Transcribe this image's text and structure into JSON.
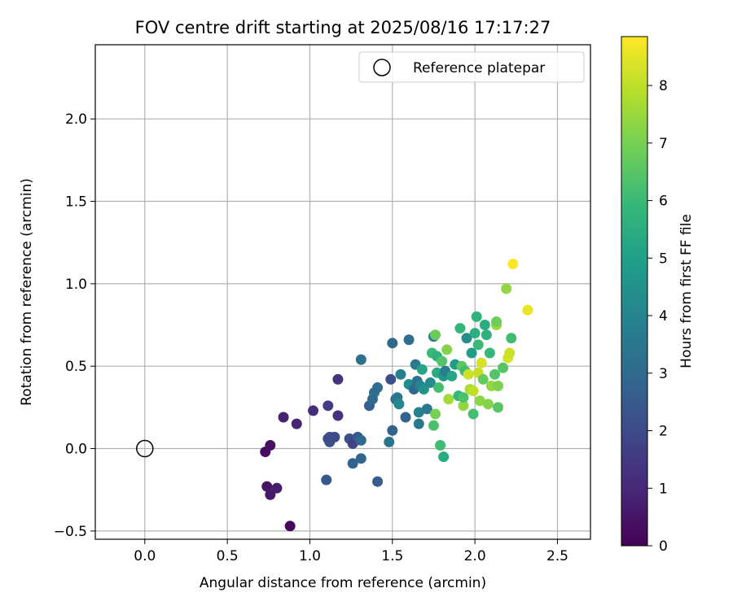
{
  "chart_data": {
    "type": "scatter",
    "title": "FOV centre drift starting at 2025/08/16 17:17:27",
    "xlabel": "Angular distance from reference (arcmin)",
    "ylabel": "Rotation from reference (arcmin)",
    "xlim": [
      -0.3,
      2.7
    ],
    "ylim": [
      -0.55,
      2.45
    ],
    "xticks": [
      0.0,
      0.5,
      1.0,
      1.5,
      2.0,
      2.5
    ],
    "xtick_labels": [
      "0.0",
      "0.5",
      "1.0",
      "1.5",
      "2.0",
      "2.5"
    ],
    "yticks": [
      -0.5,
      0.0,
      0.5,
      1.0,
      1.5,
      2.0
    ],
    "ytick_labels": [
      "−0.5",
      "0.0",
      "0.5",
      "1.0",
      "1.5",
      "2.0"
    ],
    "grid": true,
    "legend": {
      "placement": "top-right",
      "entries": [
        "Reference platepar"
      ]
    },
    "reference_point": {
      "label": "Reference platepar",
      "x": 0.0,
      "y": 0.0,
      "marker": "hollow-circle"
    },
    "colorbar": {
      "label": "Hours from first FF file",
      "colormap": "viridis",
      "range": [
        0,
        8.85
      ],
      "ticks": [
        0,
        1,
        2,
        3,
        4,
        5,
        6,
        7,
        8
      ],
      "tick_labels": [
        "0",
        "1",
        "2",
        "3",
        "4",
        "5",
        "6",
        "7",
        "8"
      ]
    },
    "series": [
      {
        "points": [
          [
            0.88,
            -0.47,
            0.2
          ],
          [
            0.73,
            -0.02,
            0.3
          ],
          [
            0.76,
            0.02,
            0.4
          ],
          [
            0.74,
            -0.23,
            0.5
          ],
          [
            0.76,
            -0.28,
            0.6
          ],
          [
            0.8,
            -0.24,
            0.7
          ],
          [
            0.84,
            0.19,
            0.8
          ],
          [
            0.92,
            0.15,
            0.9
          ],
          [
            1.02,
            0.23,
            1.1
          ],
          [
            1.11,
            0.26,
            1.6
          ],
          [
            1.17,
            0.42,
            1.3
          ],
          [
            1.17,
            0.2,
            1.2
          ],
          [
            1.11,
            0.06,
            2.0
          ],
          [
            1.12,
            0.04,
            2.2
          ],
          [
            1.12,
            0.07,
            2.1
          ],
          [
            1.15,
            0.07,
            2.0
          ],
          [
            1.1,
            -0.19,
            2.4
          ],
          [
            1.24,
            0.06,
            2.2
          ],
          [
            1.26,
            0.03,
            1.8
          ],
          [
            1.29,
            0.07,
            2.5
          ],
          [
            1.26,
            -0.09,
            2.8
          ],
          [
            1.31,
            0.05,
            3.0
          ],
          [
            1.31,
            -0.06,
            2.9
          ],
          [
            1.31,
            0.54,
            3.3
          ],
          [
            1.36,
            0.26,
            2.7
          ],
          [
            1.38,
            0.3,
            3.0
          ],
          [
            1.39,
            0.34,
            3.2
          ],
          [
            1.41,
            0.37,
            3.1
          ],
          [
            1.41,
            -0.2,
            2.6
          ],
          [
            1.49,
            0.42,
            2.2
          ],
          [
            1.48,
            0.04,
            3.4
          ],
          [
            1.5,
            0.11,
            2.8
          ],
          [
            1.5,
            0.64,
            3.0
          ],
          [
            1.52,
            0.3,
            2.9
          ],
          [
            1.53,
            0.31,
            3.5
          ],
          [
            1.54,
            0.27,
            4.1
          ],
          [
            1.55,
            0.45,
            3.8
          ],
          [
            1.58,
            0.19,
            2.8
          ],
          [
            1.6,
            0.39,
            4.3
          ],
          [
            1.6,
            0.66,
            3.2
          ],
          [
            1.63,
            0.36,
            3.0
          ],
          [
            1.64,
            0.51,
            3.6
          ],
          [
            1.65,
            0.41,
            3.4
          ],
          [
            1.66,
            0.15,
            3.5
          ],
          [
            1.66,
            0.22,
            3.9
          ],
          [
            1.67,
            0.38,
            4.0
          ],
          [
            1.68,
            0.48,
            5.2
          ],
          [
            1.69,
            0.36,
            4.5
          ],
          [
            1.71,
            0.24,
            3.6
          ],
          [
            1.73,
            0.4,
            4.2
          ],
          [
            1.74,
            0.58,
            6.0
          ],
          [
            1.75,
            0.68,
            3.7
          ],
          [
            1.76,
            0.69,
            6.8
          ],
          [
            1.75,
            0.14,
            6.3
          ],
          [
            1.76,
            0.21,
            7.0
          ],
          [
            1.77,
            0.46,
            5.4
          ],
          [
            1.77,
            0.56,
            5.7
          ],
          [
            1.78,
            0.37,
            6.2
          ],
          [
            1.79,
            0.02,
            6.1
          ],
          [
            1.8,
            0.53,
            6.4
          ],
          [
            1.81,
            -0.05,
            5.4
          ],
          [
            1.81,
            0.44,
            4.6
          ],
          [
            1.82,
            0.47,
            3.8
          ],
          [
            1.83,
            0.6,
            7.2
          ],
          [
            1.84,
            0.3,
            7.6
          ],
          [
            1.86,
            0.44,
            5.2
          ],
          [
            1.88,
            0.51,
            4.8
          ],
          [
            1.9,
            0.32,
            5.9
          ],
          [
            1.91,
            0.73,
            5.8
          ],
          [
            1.92,
            0.5,
            6.6
          ],
          [
            1.93,
            0.26,
            7.4
          ],
          [
            1.93,
            0.31,
            6.3
          ],
          [
            1.94,
            0.47,
            6.1
          ],
          [
            1.95,
            0.67,
            4.4
          ],
          [
            1.96,
            0.45,
            8.2
          ],
          [
            1.97,
            0.36,
            7.7
          ],
          [
            1.98,
            0.58,
            4.9
          ],
          [
            1.99,
            0.21,
            6.2
          ],
          [
            1.99,
            0.35,
            8.0
          ],
          [
            2.0,
            0.7,
            5.6
          ],
          [
            2.01,
            0.8,
            5.7
          ],
          [
            2.02,
            0.46,
            8.1
          ],
          [
            2.02,
            0.63,
            6.0
          ],
          [
            2.03,
            0.29,
            7.3
          ],
          [
            2.04,
            0.52,
            8.3
          ],
          [
            2.05,
            0.42,
            6.7
          ],
          [
            2.06,
            0.75,
            5.5
          ],
          [
            2.07,
            0.69,
            5.6
          ],
          [
            2.08,
            0.27,
            7.2
          ],
          [
            2.09,
            0.58,
            5.9
          ],
          [
            2.1,
            0.38,
            7.4
          ],
          [
            2.12,
            0.45,
            6.4
          ],
          [
            2.13,
            0.75,
            7.5
          ],
          [
            2.13,
            0.77,
            6.9
          ],
          [
            2.14,
            0.25,
            6.5
          ],
          [
            2.14,
            0.38,
            7.1
          ],
          [
            2.17,
            0.49,
            6.5
          ],
          [
            2.19,
            0.97,
            7.4
          ],
          [
            2.2,
            0.55,
            8.3
          ],
          [
            2.21,
            0.58,
            8.2
          ],
          [
            2.22,
            0.67,
            6.1
          ],
          [
            2.23,
            1.12,
            8.8
          ],
          [
            2.32,
            0.84,
            8.6
          ]
        ]
      }
    ]
  }
}
